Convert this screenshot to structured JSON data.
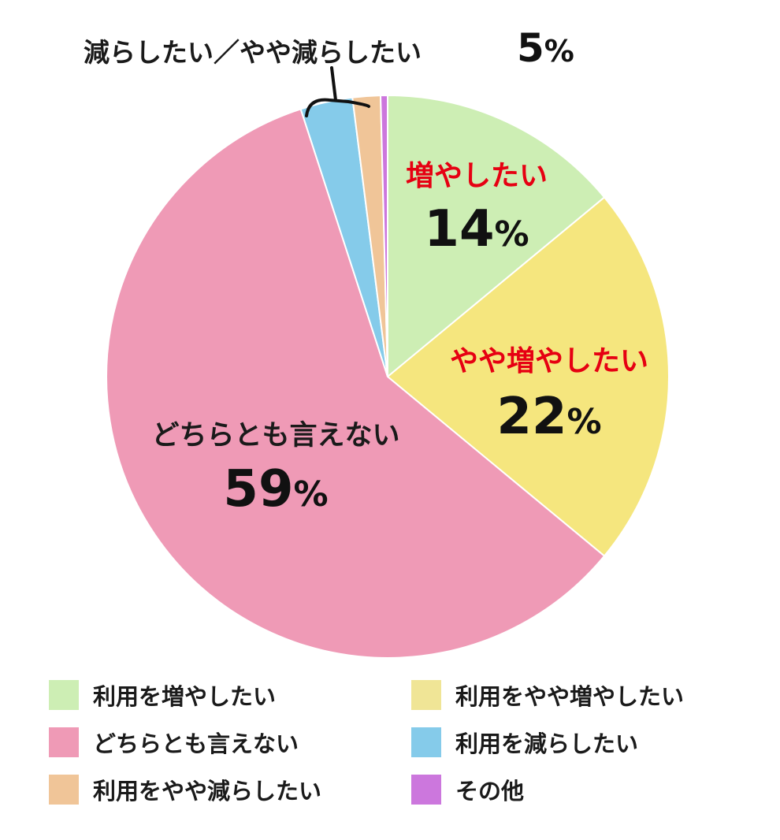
{
  "chart_data": {
    "type": "pie",
    "slices": [
      {
        "name": "利用を増やしたい",
        "value": 14,
        "color": "#cdeeb4"
      },
      {
        "name": "利用をやや増やしたい",
        "value": 22,
        "color": "#f5e67e"
      },
      {
        "name": "どちらとも言えない",
        "value": 59,
        "color": "#ef9ab6"
      },
      {
        "name": "利用を減らしたい",
        "value": 3,
        "color": "#85cbea"
      },
      {
        "name": "利用をやや減らしたい",
        "value": 1.6,
        "color": "#f0c598"
      },
      {
        "name": "その他",
        "value": 0.4,
        "color": "#cc77dd"
      }
    ],
    "labels": {
      "increase": {
        "text": "増やしたい",
        "pct": "14",
        "unit": "%"
      },
      "slightly_increase": {
        "text": "やや増やしたい",
        "pct": "22",
        "unit": "%"
      },
      "neutral": {
        "text": "どちらとも言えない",
        "pct": "59",
        "unit": "%"
      },
      "decrease_combined": {
        "text": "減らしたい／やや減らしたい",
        "pct": "5",
        "unit": "%"
      }
    },
    "legend": [
      "利用を増やしたい",
      "利用をやや増やしたい",
      "どちらとも言えない",
      "利用を減らしたい",
      "利用をやや減らしたい",
      "その他"
    ],
    "legend_placement": "bottom",
    "colors": {
      "highlight_label": "#e60012",
      "value_text": "#111111",
      "title_text": "#1a1a1a"
    }
  }
}
